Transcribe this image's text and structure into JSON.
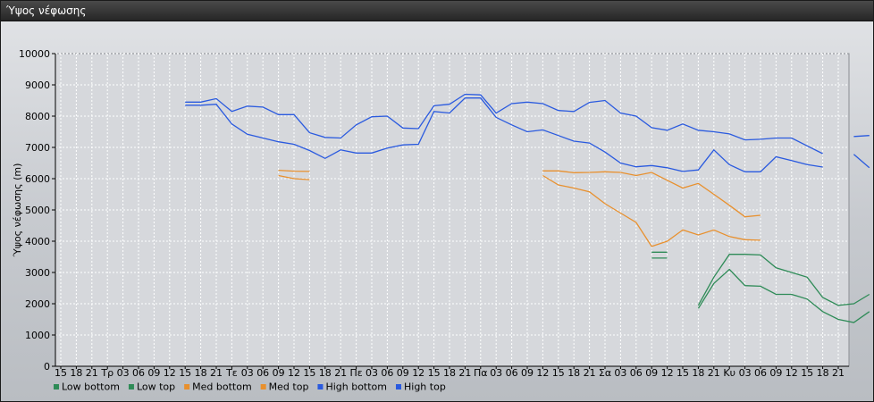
{
  "window": {
    "title": "Ύψος νέφωσης"
  },
  "chart_data": {
    "type": "line",
    "title": "",
    "xlabel": "",
    "ylabel": "Ύψος νέφωσης (m)",
    "ylim": [
      0,
      10000
    ],
    "yticks": [
      0,
      1000,
      2000,
      3000,
      4000,
      5000,
      6000,
      7000,
      8000,
      9000,
      10000
    ],
    "grid": true,
    "legend_position": "bottom-left",
    "x_tick_labels": [
      "15",
      "18",
      "21",
      "Τρ",
      "03",
      "06",
      "09",
      "12",
      "15",
      "18",
      "21",
      "Τε",
      "03",
      "06",
      "09",
      "12",
      "15",
      "18",
      "21",
      "Πε",
      "03",
      "06",
      "09",
      "12",
      "15",
      "18",
      "21",
      "Πα",
      "03",
      "06",
      "09",
      "12",
      "15",
      "18",
      "21",
      "Σα",
      "03",
      "06",
      "09",
      "12",
      "15",
      "18",
      "21",
      "Κυ",
      "03",
      "06",
      "09",
      "12",
      "15",
      "18",
      "21"
    ],
    "series": [
      {
        "name": "Low bottom",
        "color": "#2e8b57",
        "points": [
          [
            38,
            3460
          ],
          [
            39,
            3460
          ],
          null,
          [
            41,
            1850
          ],
          [
            42,
            2650
          ],
          [
            43,
            3100
          ],
          [
            44,
            2580
          ],
          [
            45,
            2560
          ],
          [
            46,
            2300
          ],
          [
            47,
            2300
          ],
          [
            48,
            2150
          ],
          [
            49,
            1750
          ],
          [
            50,
            1500
          ],
          [
            51,
            1400
          ],
          [
            52,
            1750
          ]
        ]
      },
      {
        "name": "Low top",
        "color": "#2e8b57",
        "points": [
          [
            38,
            3650
          ],
          [
            39,
            3650
          ],
          null,
          [
            41,
            1950
          ],
          [
            42,
            2850
          ],
          [
            43,
            3580
          ],
          [
            44,
            3580
          ],
          [
            45,
            3560
          ],
          [
            46,
            3150
          ],
          [
            47,
            3000
          ],
          [
            48,
            2850
          ],
          [
            49,
            2200
          ],
          [
            50,
            1950
          ],
          [
            51,
            2000
          ],
          [
            52,
            2300
          ]
        ]
      },
      {
        "name": "Med bottom",
        "color": "#e8902e",
        "points": [
          [
            14,
            6100
          ],
          [
            15,
            6000
          ],
          [
            16,
            5970
          ],
          null,
          [
            31,
            6100
          ],
          [
            32,
            5800
          ],
          [
            33,
            5700
          ],
          [
            34,
            5580
          ],
          [
            35,
            5200
          ],
          [
            36,
            4900
          ],
          [
            37,
            4600
          ],
          [
            38,
            3830
          ],
          [
            39,
            4000
          ],
          [
            40,
            4360
          ],
          [
            41,
            4200
          ],
          [
            42,
            4360
          ],
          [
            43,
            4150
          ],
          [
            44,
            4050
          ],
          [
            45,
            4030
          ]
        ]
      },
      {
        "name": "Med top",
        "color": "#e8902e",
        "points": [
          [
            14,
            6270
          ],
          [
            15,
            6240
          ],
          [
            16,
            6230
          ],
          null,
          [
            31,
            6250
          ],
          [
            32,
            6250
          ],
          [
            33,
            6190
          ],
          [
            34,
            6200
          ],
          [
            35,
            6220
          ],
          [
            36,
            6200
          ],
          [
            37,
            6100
          ],
          [
            38,
            6200
          ],
          [
            39,
            5950
          ],
          [
            40,
            5700
          ],
          [
            41,
            5850
          ],
          [
            42,
            5500
          ],
          [
            43,
            5150
          ],
          [
            44,
            4780
          ],
          [
            45,
            4830
          ]
        ]
      },
      {
        "name": "High bottom",
        "color": "#2a5adf",
        "points": [
          [
            8,
            8350
          ],
          [
            9,
            8350
          ],
          [
            10,
            8380
          ],
          [
            11,
            7750
          ],
          [
            12,
            7420
          ],
          [
            13,
            7300
          ],
          [
            14,
            7180
          ],
          [
            15,
            7100
          ],
          [
            16,
            6900
          ],
          [
            17,
            6650
          ],
          [
            18,
            6920
          ],
          [
            19,
            6820
          ],
          [
            20,
            6820
          ],
          [
            21,
            6980
          ],
          [
            22,
            7080
          ],
          [
            23,
            7100
          ],
          [
            24,
            8150
          ],
          [
            25,
            8100
          ],
          [
            26,
            8580
          ],
          [
            27,
            8580
          ],
          [
            28,
            7960
          ],
          [
            29,
            7720
          ],
          [
            30,
            7500
          ],
          [
            31,
            7560
          ],
          [
            32,
            7380
          ],
          [
            33,
            7200
          ],
          [
            34,
            7140
          ],
          [
            35,
            6850
          ],
          [
            36,
            6500
          ],
          [
            37,
            6380
          ],
          [
            38,
            6420
          ],
          [
            39,
            6350
          ],
          [
            40,
            6230
          ],
          [
            41,
            6280
          ],
          [
            42,
            6920
          ],
          [
            43,
            6450
          ],
          [
            44,
            6220
          ],
          [
            45,
            6220
          ],
          [
            46,
            6700
          ],
          [
            47,
            6580
          ],
          [
            48,
            6450
          ],
          [
            49,
            6370
          ],
          null,
          [
            51,
            6780
          ],
          [
            52,
            6350
          ]
        ]
      },
      {
        "name": "High top",
        "color": "#2a5adf",
        "points": [
          [
            8,
            8450
          ],
          [
            9,
            8450
          ],
          [
            10,
            8560
          ],
          [
            11,
            8150
          ],
          [
            12,
            8320
          ],
          [
            13,
            8290
          ],
          [
            14,
            8050
          ],
          [
            15,
            8050
          ],
          [
            16,
            7470
          ],
          [
            17,
            7320
          ],
          [
            18,
            7300
          ],
          [
            19,
            7720
          ],
          [
            20,
            7980
          ],
          [
            21,
            8000
          ],
          [
            22,
            7620
          ],
          [
            23,
            7600
          ],
          [
            24,
            8330
          ],
          [
            25,
            8380
          ],
          [
            26,
            8700
          ],
          [
            27,
            8680
          ],
          [
            28,
            8100
          ],
          [
            29,
            8400
          ],
          [
            30,
            8450
          ],
          [
            31,
            8400
          ],
          [
            32,
            8180
          ],
          [
            33,
            8150
          ],
          [
            34,
            8440
          ],
          [
            35,
            8500
          ],
          [
            36,
            8100
          ],
          [
            37,
            8000
          ],
          [
            38,
            7630
          ],
          [
            39,
            7550
          ],
          [
            40,
            7750
          ],
          [
            41,
            7550
          ],
          [
            42,
            7500
          ],
          [
            43,
            7430
          ],
          [
            44,
            7240
          ],
          [
            45,
            7260
          ],
          [
            46,
            7300
          ],
          [
            47,
            7300
          ],
          [
            48,
            7050
          ],
          [
            49,
            6800
          ],
          null,
          [
            51,
            7350
          ],
          [
            52,
            7380
          ]
        ]
      }
    ]
  }
}
